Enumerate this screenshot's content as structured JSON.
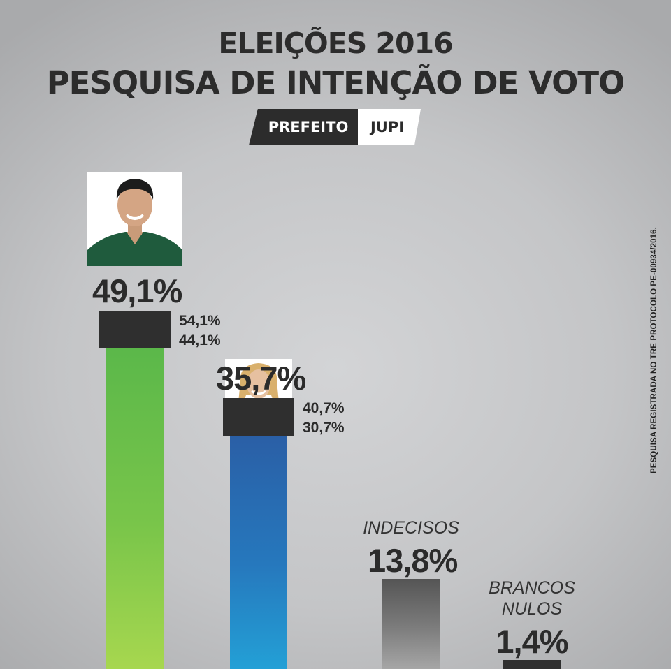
{
  "header": {
    "line1": "ELEIÇÕES 2016",
    "line2": "PESQUISA DE INTENÇÃO DE VOTO",
    "office": "PREFEITO",
    "city": "JUPI"
  },
  "footnote": "PESQUISA REGISTRADA NO TRE PROTOCOLO PE-00934/2016.",
  "colors": {
    "candidate_1": "#6cc04a",
    "candidate_2": "#2a7fc0",
    "indecisos": "#777777",
    "brancos_nulos": "#2f2f2f",
    "text": "#2c2c2c"
  },
  "chart_data": {
    "type": "bar",
    "title": "PESQUISA DE INTENÇÃO DE VOTO",
    "ylim": [
      0,
      54.1
    ],
    "grid": false,
    "bars": [
      {
        "value": 49.1,
        "value_label": "49,1%",
        "upper": 54.1,
        "upper_label": "54,1%",
        "lower": 44.1,
        "lower_label": "44,1%",
        "color": "#6cc04a"
      },
      {
        "value": 35.7,
        "value_label": "35,7%",
        "upper": 40.7,
        "upper_label": "40,7%",
        "lower": 30.7,
        "lower_label": "30,7%",
        "color": "#2a7fc0"
      },
      {
        "category": "INDECISOS",
        "value": 13.8,
        "value_label": "13,8%",
        "color": "#777777"
      },
      {
        "category": "BRANCOS NULOS",
        "category_lines": [
          "BRANCOS",
          "NULOS"
        ],
        "value": 1.4,
        "value_label": "1,4%",
        "color": "#2f2f2f"
      }
    ]
  }
}
